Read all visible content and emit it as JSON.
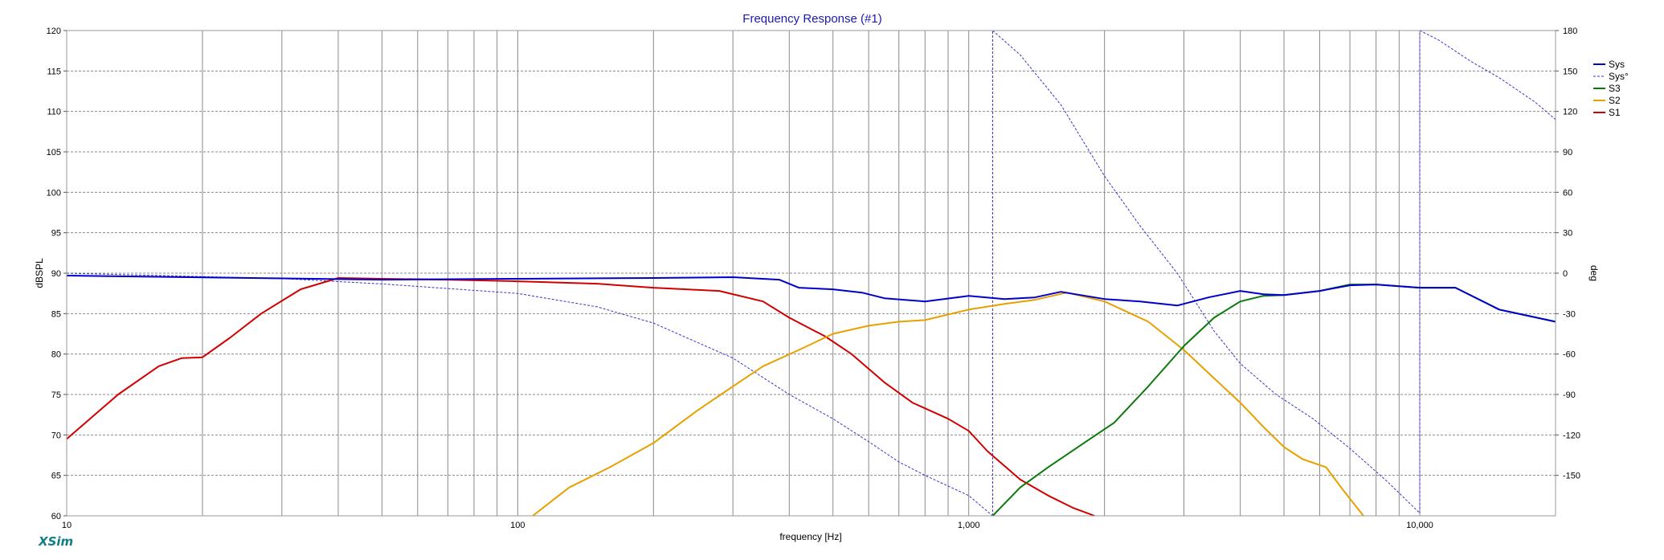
{
  "chart_data": {
    "type": "line",
    "title": "Frequency Response (#1)",
    "xlabel": "frequency [Hz]",
    "ylabel": "dBSPL",
    "y2label": "deg",
    "xscale": "log",
    "xlim": [
      10,
      20000
    ],
    "ylim": [
      60,
      120
    ],
    "y2lim": [
      -180,
      180
    ],
    "grid": true,
    "legend_position": "right",
    "x_tick_labels": [
      {
        "value": 10,
        "label": "10"
      },
      {
        "value": 100,
        "label": "100"
      },
      {
        "value": 1000,
        "label": "1,000"
      },
      {
        "value": 10000,
        "label": "10,000"
      }
    ],
    "y_ticks": [
      60,
      65,
      70,
      75,
      80,
      85,
      90,
      95,
      100,
      105,
      110,
      115,
      120
    ],
    "y2_ticks": [
      -150,
      -120,
      -90,
      -60,
      -30,
      0,
      30,
      60,
      90,
      120,
      150,
      180
    ],
    "series": [
      {
        "name": "Sys",
        "axis": "left",
        "color": "#0000cc",
        "dash": false,
        "x": [
          10,
          50,
          100,
          200,
          300,
          380,
          420,
          500,
          580,
          650,
          800,
          1000,
          1200,
          1400,
          1600,
          2000,
          2400,
          2900,
          3400,
          4000,
          4500,
          5000,
          6000,
          7000,
          8000,
          10000,
          12000,
          15000,
          20000
        ],
        "y": [
          89.7,
          89.2,
          89.3,
          89.4,
          89.5,
          89.2,
          88.2,
          88.0,
          87.6,
          86.9,
          86.5,
          87.2,
          86.8,
          87.0,
          87.7,
          86.8,
          86.5,
          86.0,
          87.0,
          87.8,
          87.4,
          87.3,
          87.8,
          88.5,
          88.6,
          88.2,
          88.2,
          85.5,
          84.0
        ]
      },
      {
        "name": "Sys°",
        "axis": "right",
        "color": "#3333cc",
        "dash": true,
        "segments": [
          {
            "x": [
              10,
              30,
              50,
              100,
              150,
              200,
              300,
              400,
              500,
              600,
              700,
              800,
              1000,
              1130
            ],
            "y": [
              0,
              -4,
              -8,
              -15,
              -25,
              -37,
              -63,
              -90,
              -108,
              -125,
              -140,
              -150,
              -165,
              -180
            ]
          },
          {
            "x": [
              1130,
              1300,
              1600,
              2000,
              2400,
              2900,
              3500,
              4000,
              4800,
              5800,
              7000,
              8500,
              10000
            ],
            "y": [
              180,
              162,
              125,
              72,
              35,
              0,
              -43,
              -67,
              -90,
              -108,
              -130,
              -155,
              -178
            ]
          },
          {
            "x": [
              10000,
              11000,
              13000,
              15000,
              18000,
              20000
            ],
            "y": [
              180,
              173,
              157,
              145,
              127,
              114
            ]
          }
        ]
      },
      {
        "name": "S3",
        "axis": "left",
        "color": "#0a7a0a",
        "dash": false,
        "x": [
          1130,
          1300,
          1500,
          1800,
          2100,
          2500,
          3000,
          3500,
          4000,
          4500,
          5000,
          6000,
          7000,
          8000,
          10000,
          12000,
          15000,
          20000
        ],
        "y": [
          60.0,
          63.5,
          66.0,
          69.0,
          71.5,
          76.0,
          81.0,
          84.5,
          86.5,
          87.2,
          87.3,
          87.8,
          88.6,
          88.6,
          88.2,
          88.2,
          85.5,
          84.0
        ]
      },
      {
        "name": "S2",
        "axis": "left",
        "color": "#e6a000",
        "dash": false,
        "x": [
          108,
          130,
          160,
          200,
          250,
          300,
          350,
          420,
          500,
          600,
          700,
          800,
          1000,
          1200,
          1400,
          1650,
          2000,
          2500,
          3000,
          3500,
          4000,
          4500,
          5000,
          5500,
          6200,
          6800,
          7500
        ],
        "y": [
          60.0,
          63.5,
          66.0,
          69.0,
          73.0,
          76.0,
          78.5,
          80.5,
          82.5,
          83.5,
          84.0,
          84.2,
          85.5,
          86.2,
          86.7,
          87.6,
          86.5,
          84.0,
          80.5,
          77.0,
          74.0,
          71.0,
          68.5,
          67.0,
          66.0,
          63.0,
          60.0
        ]
      },
      {
        "name": "S1",
        "axis": "left",
        "color": "#d00000",
        "dash": false,
        "x": [
          10,
          13,
          16,
          18,
          20,
          23,
          27,
          33,
          40,
          50,
          70,
          100,
          150,
          200,
          280,
          350,
          400,
          480,
          550,
          650,
          750,
          900,
          1000,
          1100,
          1300,
          1500,
          1700,
          1900
        ],
        "y": [
          69.5,
          75.0,
          78.5,
          79.5,
          79.6,
          82.0,
          85.0,
          88.0,
          89.4,
          89.3,
          89.2,
          89.0,
          88.7,
          88.2,
          87.8,
          86.5,
          84.5,
          82.2,
          80.0,
          76.5,
          74.0,
          72.0,
          70.5,
          68.0,
          64.5,
          62.5,
          61.0,
          60.0
        ]
      }
    ]
  },
  "brand": "XSim"
}
